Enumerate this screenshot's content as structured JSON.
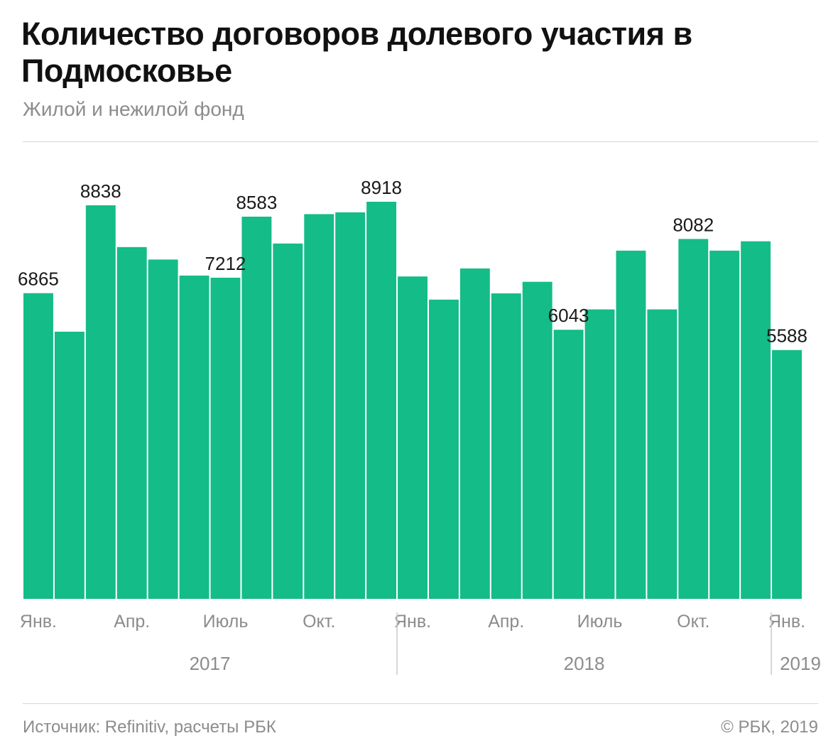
{
  "header": {
    "title": "Количество договоров долевого участия в Подмосковье",
    "subtitle": "Жилой и нежилой фонд"
  },
  "footer": {
    "source": "Источник: Refinitiv, расчеты РБК",
    "copyright": "© РБК, 2019"
  },
  "colors": {
    "bar": "#14bc87",
    "axis_text": "#8c8c8c",
    "label_text": "#1a1a1a",
    "divider": "#cccccc"
  },
  "chart_data": {
    "type": "bar",
    "categories": [
      "Янв. 2017",
      "Фев. 2017",
      "Мар. 2017",
      "Апр. 2017",
      "Май 2017",
      "Июнь 2017",
      "Июль 2017",
      "Авг. 2017",
      "Сен. 2017",
      "Окт. 2017",
      "Нояб. 2017",
      "Дек. 2017",
      "Янв. 2018",
      "Фев. 2018",
      "Мар. 2018",
      "Апр. 2018",
      "Май 2018",
      "Июнь 2018",
      "Июль 2018",
      "Авг. 2018",
      "Сен. 2018",
      "Окт. 2018",
      "Нояб. 2018",
      "Дек. 2018",
      "Янв. 2019"
    ],
    "values": [
      6865,
      6000,
      8838,
      7900,
      7620,
      7260,
      7212,
      8583,
      7980,
      8640,
      8680,
      8918,
      7240,
      6720,
      7420,
      6860,
      7120,
      6043,
      6500,
      7820,
      6500,
      8082,
      7820,
      8030,
      5588
    ],
    "data_labels": [
      {
        "index": 0,
        "text": "6865"
      },
      {
        "index": 2,
        "text": "8838"
      },
      {
        "index": 6,
        "text": "7212"
      },
      {
        "index": 7,
        "text": "8583"
      },
      {
        "index": 11,
        "text": "8918"
      },
      {
        "index": 17,
        "text": "6043"
      },
      {
        "index": 21,
        "text": "8082"
      },
      {
        "index": 24,
        "text": "5588"
      }
    ],
    "month_ticks": [
      {
        "index": 0,
        "text": "Янв."
      },
      {
        "index": 3,
        "text": "Апр."
      },
      {
        "index": 6,
        "text": "Июль"
      },
      {
        "index": 9,
        "text": "Окт."
      },
      {
        "index": 12,
        "text": "Янв."
      },
      {
        "index": 15,
        "text": "Апр."
      },
      {
        "index": 18,
        "text": "Июль"
      },
      {
        "index": 21,
        "text": "Окт."
      },
      {
        "index": 24,
        "text": "Янв."
      }
    ],
    "year_groups": [
      {
        "text": "2017",
        "start": 0,
        "end": 11
      },
      {
        "text": "2018",
        "start": 12,
        "end": 23
      },
      {
        "text": "2019",
        "start": 24,
        "end": 24
      }
    ],
    "ylim": [
      0,
      9500
    ],
    "grid": false,
    "legend": "none"
  }
}
